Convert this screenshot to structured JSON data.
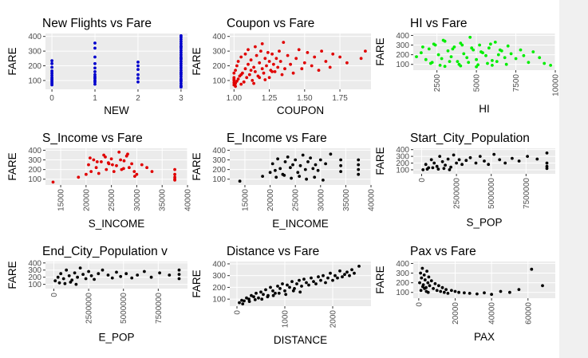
{
  "colors": {
    "blue": "#0000cd",
    "red": "#e00000",
    "green": "#00ee00",
    "black": "#000000",
    "panel": "#ebebeb",
    "grid": "#ffffff"
  },
  "chart_data": [
    {
      "type": "scatter",
      "title": "New Flights vs Fare",
      "xlabel": "NEW",
      "ylabel": "FARE",
      "xlim": [
        -0.15,
        3.15
      ],
      "ylim": [
        40,
        420
      ],
      "xticks": [
        0,
        1,
        2,
        3
      ],
      "yticks": [
        100,
        200,
        300,
        400
      ],
      "xtick_rotated": false,
      "grid": true,
      "color": "blue",
      "x": [
        0,
        0,
        0,
        0,
        0,
        0,
        0,
        0,
        0,
        0,
        0,
        0,
        1,
        1,
        1,
        1,
        1,
        1,
        1,
        1,
        1,
        1,
        1,
        1,
        2,
        2,
        2,
        2,
        2,
        2,
        3,
        3,
        3,
        3,
        3,
        3,
        3,
        3,
        3,
        3,
        3,
        3,
        3,
        3,
        3,
        3,
        3,
        3,
        3,
        3,
        3,
        3,
        3,
        3,
        3,
        3,
        3,
        3,
        3,
        3
      ],
      "y": [
        70,
        80,
        90,
        100,
        110,
        120,
        135,
        150,
        165,
        190,
        215,
        235,
        75,
        90,
        100,
        115,
        125,
        140,
        160,
        185,
        215,
        260,
        320,
        355,
        90,
        115,
        140,
        175,
        200,
        225,
        55,
        65,
        80,
        95,
        110,
        125,
        140,
        155,
        170,
        185,
        200,
        215,
        230,
        245,
        260,
        275,
        290,
        305,
        320,
        335,
        350,
        365,
        380,
        395,
        405,
        60,
        100,
        150,
        250,
        330
      ]
    },
    {
      "type": "scatter",
      "title": "Coupon vs Fare",
      "xlabel": "COUPON",
      "ylabel": "FARE",
      "xlim": [
        0.97,
        1.97
      ],
      "ylim": [
        40,
        420
      ],
      "xticks": [
        1.0,
        1.25,
        1.5,
        1.75
      ],
      "xtick_labels": [
        "1.00",
        "1.25",
        "1.50",
        "1.75"
      ],
      "yticks": [
        100,
        200,
        300,
        400
      ],
      "xtick_rotated": false,
      "grid": true,
      "color": "red",
      "x": [
        1.0,
        1.0,
        1.0,
        1.0,
        1.0,
        1.01,
        1.01,
        1.02,
        1.02,
        1.03,
        1.03,
        1.04,
        1.05,
        1.05,
        1.06,
        1.07,
        1.08,
        1.08,
        1.09,
        1.1,
        1.1,
        1.11,
        1.12,
        1.13,
        1.14,
        1.15,
        1.15,
        1.16,
        1.17,
        1.18,
        1.19,
        1.2,
        1.2,
        1.21,
        1.22,
        1.23,
        1.24,
        1.25,
        1.25,
        1.26,
        1.27,
        1.28,
        1.29,
        1.3,
        1.31,
        1.32,
        1.33,
        1.35,
        1.36,
        1.38,
        1.4,
        1.42,
        1.44,
        1.46,
        1.48,
        1.5,
        1.52,
        1.55,
        1.57,
        1.6,
        1.62,
        1.65,
        1.68,
        1.7,
        1.75,
        1.8,
        1.9,
        1.93,
        1.0,
        1.05,
        1.12,
        1.18,
        1.27,
        1.34,
        1.01,
        1.07,
        1.14,
        1.22
      ],
      "y": [
        70,
        85,
        100,
        120,
        150,
        80,
        170,
        95,
        200,
        110,
        230,
        130,
        75,
        260,
        150,
        90,
        180,
        280,
        120,
        210,
        310,
        140,
        240,
        100,
        190,
        330,
        160,
        270,
        130,
        220,
        300,
        180,
        350,
        150,
        250,
        200,
        290,
        230,
        120,
        170,
        280,
        210,
        160,
        250,
        190,
        300,
        230,
        360,
        180,
        270,
        210,
        150,
        250,
        310,
        180,
        220,
        290,
        200,
        260,
        170,
        300,
        230,
        190,
        280,
        260,
        220,
        250,
        300,
        110,
        140,
        170,
        120,
        160,
        140,
        60,
        90,
        80,
        105
      ]
    },
    {
      "type": "scatter",
      "title": "HI vs Fare",
      "xlabel": "HI",
      "ylabel": "FARE",
      "xlim": [
        1000,
        10000
      ],
      "ylim": [
        40,
        420
      ],
      "xticks": [
        2500,
        5000,
        7500,
        10000
      ],
      "yticks": [
        100,
        200,
        300,
        400
      ],
      "xtick_rotated": true,
      "grid": true,
      "color": "green",
      "x": [
        1200,
        1500,
        1800,
        2000,
        2200,
        2400,
        2600,
        2800,
        3000,
        3200,
        3400,
        3600,
        3800,
        4000,
        4200,
        4400,
        4600,
        4800,
        5000,
        5200,
        5400,
        5600,
        5800,
        6000,
        6200,
        6400,
        6600,
        6800,
        7000,
        7200,
        7500,
        7800,
        8000,
        8300,
        8600,
        9000,
        9300,
        9700,
        2100,
        2700,
        3300,
        3900,
        4500,
        5100,
        5700,
        6300,
        6900,
        1600,
        2300,
        2900,
        3500,
        4100,
        4700,
        5300,
        5900,
        6500,
        3000,
        4000,
        5000,
        6000
      ],
      "y": [
        180,
        220,
        150,
        260,
        120,
        300,
        200,
        160,
        340,
        240,
        180,
        280,
        130,
        320,
        210,
        170,
        380,
        250,
        150,
        300,
        220,
        190,
        270,
        140,
        330,
        200,
        240,
        170,
        290,
        210,
        160,
        250,
        190,
        120,
        230,
        170,
        110,
        90,
        110,
        90,
        130,
        100,
        120,
        95,
        110,
        130,
        100,
        280,
        310,
        350,
        260,
        300,
        270,
        230,
        310,
        250,
        80,
        85,
        75,
        90
      ]
    },
    {
      "type": "scatter",
      "title": "S_Income vs Fare",
      "xlabel": "S_INCOME",
      "ylabel": "FARE",
      "xlim": [
        12000,
        40000
      ],
      "ylim": [
        40,
        420
      ],
      "xticks": [
        15000,
        20000,
        25000,
        30000,
        35000,
        40000
      ],
      "yticks": [
        100,
        200,
        300,
        400
      ],
      "xtick_rotated": true,
      "grid": true,
      "color": "red",
      "x": [
        13500,
        18500,
        20000,
        20500,
        21000,
        21500,
        22000,
        22500,
        23000,
        23500,
        24000,
        24500,
        25000,
        25500,
        26000,
        26500,
        27000,
        27500,
        28000,
        28500,
        29000,
        29500,
        30000,
        31000,
        32000,
        33000,
        37500,
        37500,
        37500,
        37500,
        37500,
        20800,
        22200,
        23800,
        25200,
        26800,
        28200,
        29600,
        24400,
        27400
      ],
      "y": [
        70,
        120,
        150,
        250,
        180,
        300,
        220,
        160,
        280,
        350,
        200,
        260,
        310,
        180,
        240,
        380,
        200,
        290,
        340,
        220,
        260,
        180,
        150,
        250,
        220,
        180,
        200,
        150,
        120,
        100,
        90,
        320,
        280,
        330,
        250,
        300,
        360,
        130,
        270,
        210
      ]
    },
    {
      "type": "scatter",
      "title": "E_Income vs Fare",
      "xlabel": "E_INCOME",
      "ylabel": "FARE",
      "xlim": [
        12000,
        40000
      ],
      "ylim": [
        40,
        420
      ],
      "xticks": [
        15000,
        20000,
        25000,
        30000,
        35000,
        40000
      ],
      "yticks": [
        100,
        200,
        300,
        400
      ],
      "xtick_rotated": true,
      "grid": true,
      "color": "black",
      "x": [
        14000,
        18500,
        20000,
        20500,
        21000,
        21500,
        22000,
        22500,
        23000,
        23500,
        24000,
        24500,
        25000,
        25500,
        26000,
        26500,
        27000,
        27500,
        28000,
        28500,
        29000,
        29500,
        30000,
        31000,
        32000,
        34000,
        34000,
        34000,
        37500,
        37500,
        37500,
        37500,
        21200,
        22800,
        24200,
        25800,
        27200,
        28800,
        30500
      ],
      "y": [
        80,
        130,
        170,
        260,
        190,
        310,
        210,
        150,
        280,
        330,
        220,
        250,
        300,
        170,
        240,
        350,
        200,
        280,
        320,
        210,
        250,
        190,
        300,
        260,
        360,
        240,
        300,
        180,
        200,
        250,
        300,
        150,
        120,
        140,
        110,
        130,
        100,
        120,
        90
      ]
    },
    {
      "type": "scatter",
      "title": "Start_City_Population",
      "xlabel": "S_POP",
      "ylabel": "FARE",
      "xlim": [
        -600000,
        9600000
      ],
      "ylim": [
        40,
        420
      ],
      "xticks": [
        0,
        2500000,
        5000000,
        7500000
      ],
      "yticks": [
        100,
        200,
        300,
        400
      ],
      "xtick_rotated": true,
      "grid": true,
      "color": "black",
      "x": [
        100000,
        300000,
        500000,
        700000,
        900000,
        1100000,
        1300000,
        1500000,
        1700000,
        1900000,
        2100000,
        2300000,
        2500000,
        2700000,
        2900000,
        3200000,
        3500000,
        3900000,
        4200000,
        4500000,
        4800000,
        5200000,
        5600000,
        6000000,
        6500000,
        7000000,
        7600000,
        8300000,
        9000000,
        9000000,
        9000000,
        9000000,
        400000,
        800000,
        1200000,
        1600000,
        2000000
      ],
      "y": [
        100,
        180,
        130,
        250,
        200,
        150,
        300,
        220,
        170,
        260,
        140,
        320,
        200,
        250,
        180,
        240,
        280,
        200,
        300,
        230,
        180,
        330,
        250,
        200,
        270,
        230,
        300,
        260,
        350,
        200,
        150,
        120,
        110,
        130,
        110,
        120,
        100
      ]
    },
    {
      "type": "scatter",
      "title": "End_City_Population v",
      "xlabel": "E_POP",
      "ylabel": "FARE",
      "xlim": [
        -600000,
        9600000
      ],
      "ylim": [
        40,
        420
      ],
      "xticks": [
        0,
        2500000,
        5000000,
        7500000
      ],
      "yticks": [
        100,
        200,
        300,
        400
      ],
      "xtick_rotated": true,
      "grid": true,
      "color": "black",
      "x": [
        100000,
        300000,
        500000,
        700000,
        900000,
        1100000,
        1300000,
        1500000,
        1700000,
        1900000,
        2100000,
        2300000,
        2500000,
        2700000,
        2900000,
        3200000,
        3500000,
        3900000,
        4200000,
        4500000,
        4800000,
        5200000,
        5600000,
        6000000,
        6500000,
        7000000,
        7600000,
        8300000,
        9000000,
        9000000,
        9000000,
        400000,
        800000,
        1200000,
        1600000
      ],
      "y": [
        150,
        200,
        250,
        180,
        300,
        220,
        160,
        260,
        200,
        330,
        240,
        180,
        280,
        220,
        170,
        250,
        300,
        230,
        190,
        270,
        210,
        250,
        190,
        230,
        280,
        200,
        260,
        230,
        300,
        240,
        180,
        120,
        110,
        130,
        100
      ]
    },
    {
      "type": "scatter",
      "title": "Distance vs Fare",
      "xlabel": "DISTANCE",
      "ylabel": "FARE",
      "xlim": [
        -150,
        2800
      ],
      "ylim": [
        40,
        420
      ],
      "xticks": [
        0,
        1000,
        2000
      ],
      "yticks": [
        100,
        200,
        300,
        400
      ],
      "xtick_rotated": true,
      "grid": true,
      "color": "black",
      "x": [
        50,
        100,
        150,
        200,
        250,
        300,
        350,
        400,
        450,
        500,
        550,
        600,
        650,
        700,
        750,
        800,
        850,
        900,
        950,
        1000,
        1050,
        1100,
        1150,
        1200,
        1250,
        1300,
        1350,
        1400,
        1450,
        1500,
        1550,
        1600,
        1650,
        1700,
        1750,
        1800,
        1850,
        1900,
        1950,
        2000,
        2050,
        2100,
        2150,
        2200,
        2250,
        2300,
        2350,
        2400,
        2450,
        2550,
        120,
        260,
        380,
        520,
        640,
        760,
        880,
        1020,
        1180,
        1320
      ],
      "y": [
        70,
        90,
        85,
        110,
        100,
        130,
        120,
        150,
        110,
        160,
        140,
        180,
        130,
        200,
        170,
        150,
        210,
        190,
        230,
        170,
        220,
        200,
        250,
        190,
        230,
        260,
        210,
        270,
        240,
        220,
        280,
        250,
        230,
        290,
        260,
        300,
        240,
        280,
        320,
        260,
        300,
        280,
        340,
        290,
        310,
        330,
        300,
        350,
        320,
        380,
        60,
        80,
        95,
        100,
        120,
        130,
        150,
        140,
        170,
        160
      ]
    },
    {
      "type": "scatter",
      "title": "Pax vs Fare",
      "xlabel": "PAX",
      "ylabel": "FARE",
      "xlim": [
        -3000,
        75000
      ],
      "ylim": [
        40,
        420
      ],
      "xticks": [
        0,
        20000,
        40000,
        60000
      ],
      "yticks": [
        100,
        200,
        300,
        400
      ],
      "xtick_rotated": true,
      "grid": true,
      "color": "black",
      "x": [
        500,
        1000,
        1500,
        2000,
        2500,
        3000,
        3500,
        4000,
        4500,
        5000,
        5500,
        6000,
        7000,
        8000,
        9000,
        10000,
        11000,
        12000,
        13000,
        14000,
        15000,
        16000,
        18000,
        20000,
        22000,
        25000,
        28000,
        32000,
        36000,
        40000,
        45000,
        50000,
        55000,
        62000,
        68000,
        1200,
        2200,
        3200,
        4200,
        5200
      ],
      "y": [
        200,
        300,
        250,
        350,
        180,
        280,
        230,
        150,
        320,
        200,
        260,
        170,
        220,
        140,
        190,
        120,
        170,
        110,
        150,
        100,
        130,
        90,
        120,
        110,
        100,
        95,
        90,
        85,
        95,
        80,
        110,
        100,
        130,
        340,
        170,
        120,
        160,
        140,
        110,
        100
      ]
    }
  ]
}
